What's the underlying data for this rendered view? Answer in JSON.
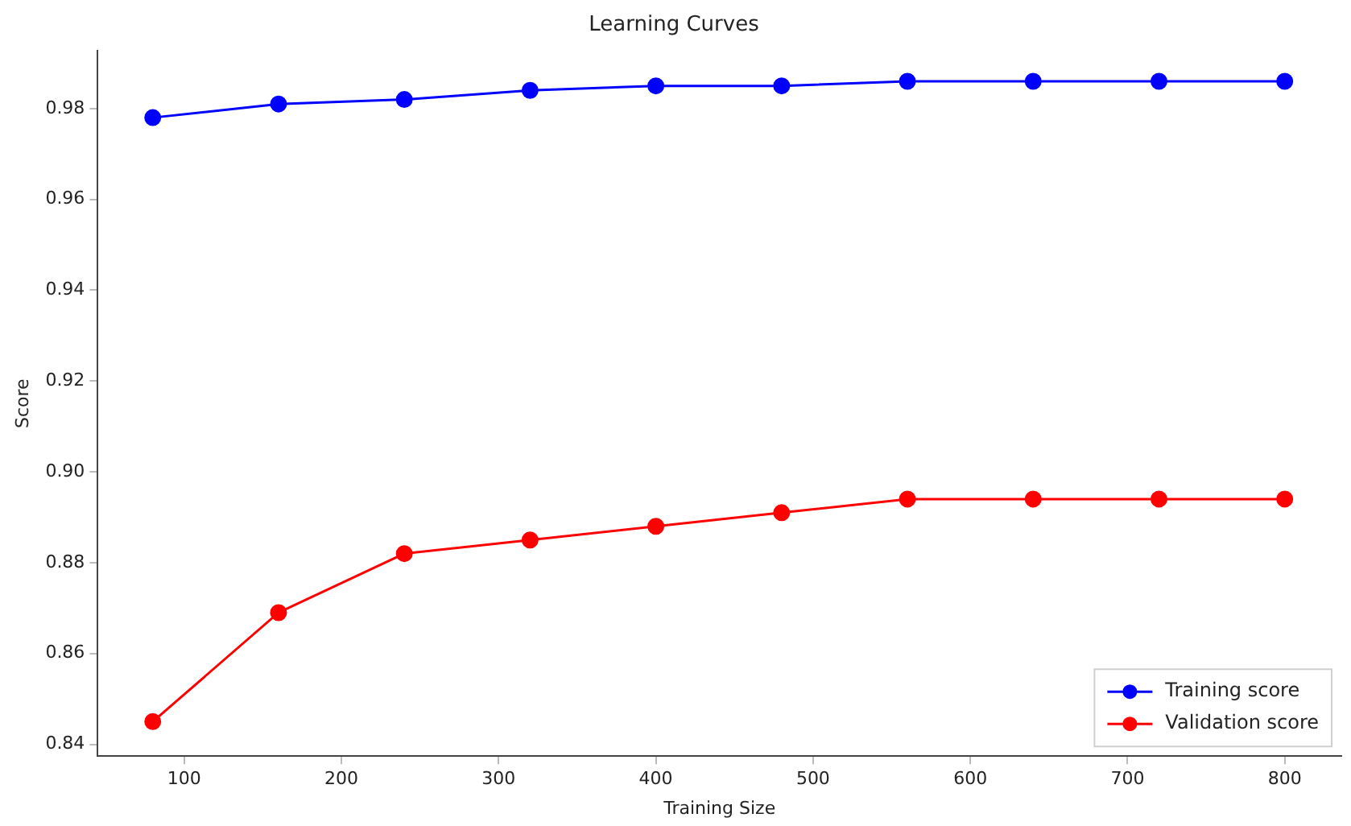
{
  "chart_data": {
    "type": "line",
    "title": "Learning Curves",
    "xlabel": "Training Size",
    "ylabel": "Score",
    "x": [
      80,
      160,
      240,
      320,
      400,
      480,
      560,
      640,
      720,
      800
    ],
    "series": [
      {
        "name": "Training score",
        "color": "#0000ff",
        "values": [
          0.978,
          0.981,
          0.982,
          0.984,
          0.985,
          0.985,
          0.986,
          0.986,
          0.986,
          0.986
        ]
      },
      {
        "name": "Validation score",
        "color": "#ff0000",
        "values": [
          0.845,
          0.869,
          0.882,
          0.885,
          0.888,
          0.891,
          0.894,
          0.894,
          0.894,
          0.894
        ]
      }
    ],
    "xlim": [
      45,
      836
    ],
    "xticks": [
      100,
      200,
      300,
      400,
      500,
      600,
      700,
      800
    ],
    "ylim": [
      0.8374,
      0.9927
    ],
    "yticks": [
      0.84,
      0.86,
      0.88,
      {
        "value": 0.9,
        "label": "0.90"
      },
      0.92,
      0.94,
      0.96,
      0.98
    ],
    "grid": false,
    "legend": "bottom right",
    "marker": "circle",
    "line_style": "solid"
  }
}
